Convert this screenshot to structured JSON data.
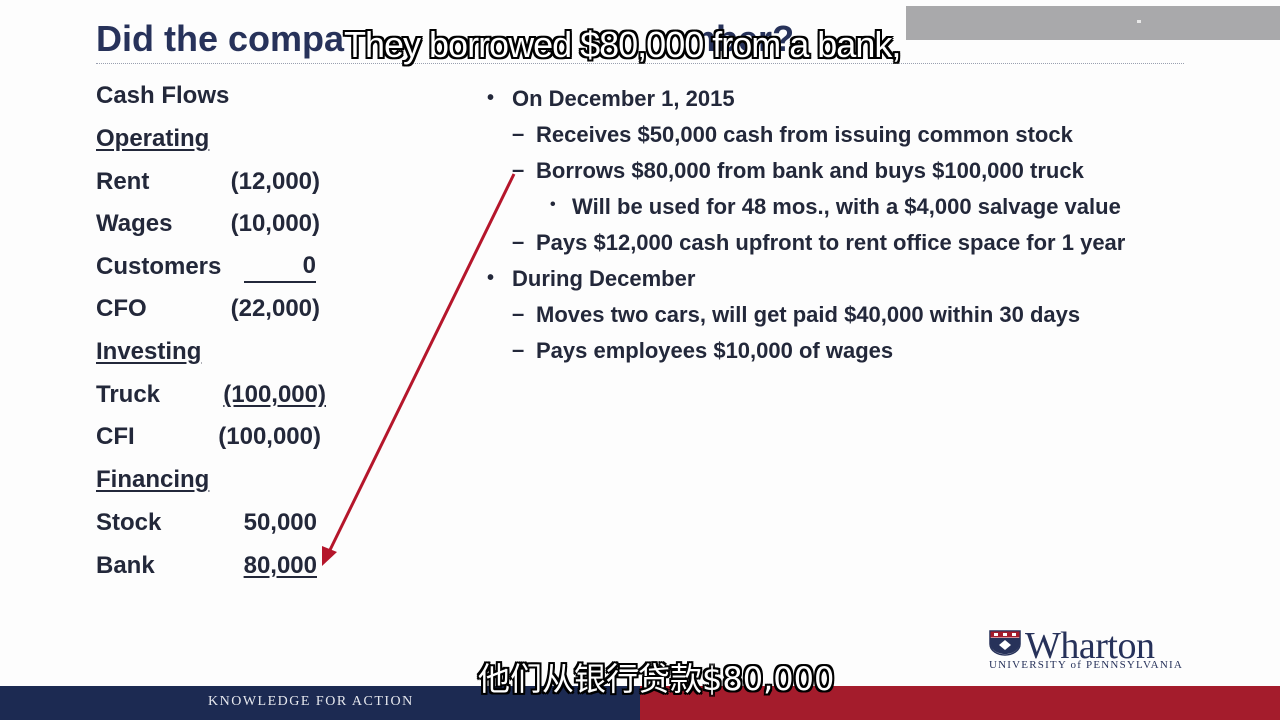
{
  "slide": {
    "title": "Did the company make money during December?",
    "title_visible_left": "Did the compa",
    "title_visible_right": "mber?"
  },
  "subtitles": {
    "english": "They borrowed $80,000 from a bank,",
    "chinese": "他们从银行贷款$80,000"
  },
  "cash_flows": {
    "heading": "Cash Flows",
    "operating": {
      "heading": "Operating",
      "rows": [
        {
          "label": "Rent",
          "value": "(12,000)"
        },
        {
          "label": "Wages",
          "value": "(10,000)"
        },
        {
          "label": "Customers",
          "value": "0"
        }
      ],
      "total_label": "CFO",
      "total_value": "(22,000)"
    },
    "investing": {
      "heading": "Investing",
      "rows": [
        {
          "label": "Truck",
          "value": "(100,000)"
        }
      ],
      "total_label": "CFI",
      "total_value": "(100,000)"
    },
    "financing": {
      "heading": "Financing",
      "rows": [
        {
          "label": "Stock",
          "value": "50,000"
        },
        {
          "label": "Bank",
          "value": "80,000"
        }
      ]
    }
  },
  "bullets": [
    {
      "text": "On December 1, 2015",
      "level": 1
    },
    {
      "text": "Receives $50,000 cash from issuing common stock",
      "level": 2
    },
    {
      "text": "Borrows $80,000 from bank and buys $100,000 truck",
      "level": 2
    },
    {
      "text": "Will be used for 48 mos., with a $4,000 salvage value",
      "level": 3
    },
    {
      "text": "Pays $12,000 cash upfront to rent office space for 1 year",
      "level": 2
    },
    {
      "text": "During December",
      "level": 1
    },
    {
      "text": "Moves two cars, will get paid $40,000 within 30 days",
      "level": 2
    },
    {
      "text": "Pays employees $10,000 of wages",
      "level": 2
    }
  ],
  "bullet_marks": {
    "level1": "•",
    "level2": "–",
    "level3": "•"
  },
  "footer": {
    "tagline": "KNOWLEDGE FOR ACTION",
    "logo_name": "Wharton",
    "logo_sub": "UNIVERSITY of PENNSYLVANIA"
  },
  "colors": {
    "title": "#27325a",
    "arrow": "#b5162b",
    "footer_navy": "#1c2a52",
    "footer_red": "#a41c2c"
  },
  "icons": {
    "logo_shield": "penn-shield-icon"
  }
}
